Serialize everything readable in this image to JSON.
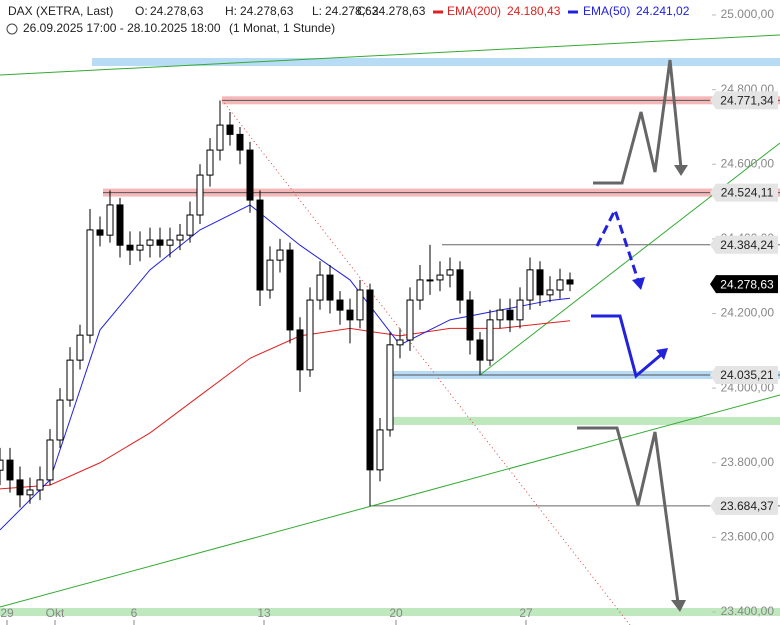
{
  "header": {
    "symbol": "DAX (XETRA, Last)",
    "open_label": "O:",
    "open": "24.278,63",
    "high_label": "H:",
    "high": "24.278,63",
    "low_label": "L:",
    "low": "24.278,63",
    "close_label": "C:",
    "close": "24.278,63",
    "ema200_label": "EMA(200)",
    "ema200": "24.180,43",
    "ema50_label": "EMA(50)",
    "ema50": "24.241,02",
    "range": "26.09.2025 17:00 - 28.10.2025 18:00",
    "period": "(1 Monat, 1 Stunde)"
  },
  "chart_data": {
    "type": "candlestick",
    "x": [
      0,
      1,
      2,
      3,
      4,
      5,
      6,
      7,
      8,
      9,
      10,
      11,
      12,
      13,
      14,
      15,
      16,
      17,
      18,
      19,
      20,
      21,
      22,
      23,
      24,
      25,
      26,
      27,
      28,
      29,
      30,
      31,
      32,
      33,
      34,
      35,
      36,
      37,
      38,
      39,
      40,
      41,
      42,
      43,
      44,
      45,
      46,
      47,
      48,
      49,
      50,
      51,
      52,
      53,
      54,
      55,
      56,
      57
    ],
    "open": [
      23780,
      23807,
      23754,
      23714,
      23727,
      23754,
      23861,
      23968,
      24075,
      24142,
      24424,
      24410,
      24491,
      24383,
      24370,
      24383,
      24397,
      24383,
      24397,
      24410,
      24464,
      24571,
      24638,
      24705,
      24680,
      24638,
      24504,
      24263,
      24343,
      24370,
      24156,
      24049,
      24236,
      24303,
      24236,
      24209,
      24183,
      24263,
      23781,
      23888,
      24116,
      24129,
      24236,
      24290,
      24290,
      24303,
      24317,
      24236,
      24129,
      24075,
      24183,
      24209,
      24183,
      24236,
      24317,
      24250,
      24263,
      24290
    ],
    "high": [
      23840,
      23840,
      23790,
      23760,
      23790,
      23890,
      24000,
      24110,
      24170,
      24480,
      24460,
      24530,
      24510,
      24420,
      24420,
      24430,
      24430,
      24430,
      24440,
      24500,
      24600,
      24670,
      24771,
      24740,
      24700,
      24660,
      24530,
      24380,
      24400,
      24390,
      24190,
      24270,
      24340,
      24330,
      24260,
      24240,
      24290,
      24280,
      23920,
      24150,
      24160,
      24270,
      24330,
      24384,
      24340,
      24350,
      24340,
      24260,
      24150,
      24210,
      24240,
      24240,
      24270,
      24350,
      24340,
      24300,
      24320,
      24310
    ],
    "low": [
      23740,
      23720,
      23680,
      23690,
      23700,
      23740,
      23840,
      23950,
      24050,
      24120,
      24380,
      24390,
      24350,
      24330,
      24340,
      24350,
      24350,
      24350,
      24370,
      24390,
      24440,
      24540,
      24610,
      24650,
      24600,
      24470,
      24220,
      24240,
      24310,
      24120,
      23990,
      24030,
      24210,
      24200,
      24170,
      24120,
      24160,
      23684,
      23750,
      23870,
      24080,
      24100,
      24210,
      24250,
      24260,
      24270,
      24200,
      24090,
      24035,
      24060,
      24160,
      24150,
      24160,
      24210,
      24220,
      24230,
      24240,
      24260
    ],
    "close": [
      23807,
      23754,
      23714,
      23727,
      23754,
      23861,
      23968,
      24075,
      24142,
      24424,
      24410,
      24491,
      24383,
      24370,
      24383,
      24397,
      24383,
      24397,
      24410,
      24464,
      24571,
      24638,
      24705,
      24680,
      24638,
      24504,
      24263,
      24343,
      24370,
      24156,
      24049,
      24236,
      24303,
      24236,
      24209,
      24183,
      24263,
      23781,
      23888,
      24116,
      24129,
      24236,
      24290,
      24290,
      24303,
      24317,
      24236,
      24129,
      24075,
      24183,
      24209,
      24183,
      24236,
      24317,
      24250,
      24263,
      24290,
      24279
    ],
    "series": [
      {
        "name": "EMA(200)",
        "color": "#e02020",
        "x": [
          0,
          5,
          10,
          15,
          20,
          25,
          30,
          35,
          40,
          45,
          50,
          55,
          57
        ],
        "values": [
          23730,
          23740,
          23800,
          23880,
          23980,
          24080,
          24140,
          24160,
          24140,
          24160,
          24160,
          24175,
          24180.43
        ]
      },
      {
        "name": "EMA(50)",
        "color": "#2020e0",
        "x": [
          0,
          5,
          10,
          15,
          20,
          25,
          30,
          35,
          40,
          45,
          50,
          55,
          57
        ],
        "values": [
          23620,
          23754,
          24156,
          24317,
          24424,
          24491,
          24383,
          24290,
          24116,
          24183,
          24209,
          24235,
          24241.02
        ]
      }
    ],
    "levels": [
      {
        "value": 24874,
        "from": 9.2,
        "style": "band",
        "color": "#b8dcf5"
      },
      {
        "value": 24771.34,
        "label": "24.771,34",
        "from": 22.2,
        "style": "band",
        "color": "#f5b8b8"
      },
      {
        "value": 24524.11,
        "label": "24.524,11",
        "from": 10.3,
        "style": "band",
        "color": "#f5b8b8"
      },
      {
        "value": 24384.24,
        "label": "24.384,24",
        "from": 44.2,
        "style": "line",
        "color": "#666666"
      },
      {
        "value": 24278.63,
        "label": "24.278,63",
        "style": "current",
        "color": "#000000"
      },
      {
        "value": 24035.21,
        "label": "24.035,21",
        "from": 39,
        "style": "band",
        "color": "#b8dcf5"
      },
      {
        "value": 23912,
        "from": 39,
        "style": "band",
        "color": "#bfe8bf"
      },
      {
        "value": 23684.37,
        "label": "23.684,37",
        "from": 37,
        "style": "line",
        "color": "#666666"
      },
      {
        "value": 23400,
        "from": 0,
        "style": "band",
        "color": "#bfe8bf"
      }
    ],
    "xlim": [
      0,
      78
    ],
    "ylim": [
      23400,
      25000
    ],
    "xticks": [
      {
        "value": 0.7,
        "label": "29"
      },
      {
        "value": 5.5,
        "label": "Okt"
      },
      {
        "value": 13.4,
        "label": "6"
      },
      {
        "value": 26.4,
        "label": "13"
      },
      {
        "value": 39.6,
        "label": "20"
      },
      {
        "value": 52.6,
        "label": "27"
      }
    ],
    "yticks": [
      {
        "value": 25000,
        "label": "25.000,00"
      },
      {
        "value": 24800,
        "label": "24.800,00"
      },
      {
        "value": 24600,
        "label": "24.600,00"
      },
      {
        "value": 24400,
        "label": "24.400,00"
      },
      {
        "value": 24200,
        "label": "24.200,00"
      },
      {
        "value": 24000,
        "label": "24.000,00"
      },
      {
        "value": 23800,
        "label": "23.800,00"
      },
      {
        "value": 23600,
        "label": "23.600,00"
      },
      {
        "value": 23400,
        "label": "23.400,00"
      }
    ]
  }
}
